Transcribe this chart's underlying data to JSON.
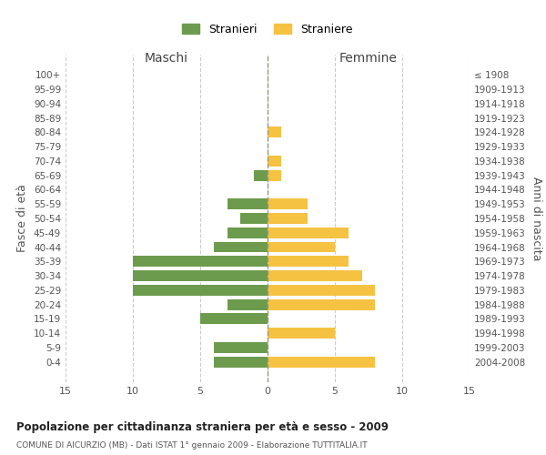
{
  "age_groups": [
    "100+",
    "95-99",
    "90-94",
    "85-89",
    "80-84",
    "75-79",
    "70-74",
    "65-69",
    "60-64",
    "55-59",
    "50-54",
    "45-49",
    "40-44",
    "35-39",
    "30-34",
    "25-29",
    "20-24",
    "15-19",
    "10-14",
    "5-9",
    "0-4"
  ],
  "birth_years": [
    "≤ 1908",
    "1909-1913",
    "1914-1918",
    "1919-1923",
    "1924-1928",
    "1929-1933",
    "1934-1938",
    "1939-1943",
    "1944-1948",
    "1949-1953",
    "1954-1958",
    "1959-1963",
    "1964-1968",
    "1969-1973",
    "1974-1978",
    "1979-1983",
    "1984-1988",
    "1989-1993",
    "1994-1998",
    "1999-2003",
    "2004-2008"
  ],
  "maschi": [
    0,
    0,
    0,
    0,
    0,
    0,
    0,
    1,
    0,
    3,
    2,
    3,
    4,
    10,
    10,
    10,
    3,
    5,
    0,
    4,
    4
  ],
  "femmine": [
    0,
    0,
    0,
    0,
    1,
    0,
    1,
    1,
    0,
    3,
    3,
    6,
    5,
    6,
    7,
    8,
    8,
    0,
    5,
    0,
    8
  ],
  "maschi_color": "#6d9b4e",
  "femmine_color": "#f5c242",
  "background_color": "#ffffff",
  "grid_color": "#cccccc",
  "title": "Popolazione per cittadinanza straniera per età e sesso - 2009",
  "subtitle": "COMUNE DI AICURZIO (MB) - Dati ISTAT 1° gennaio 2009 - Elaborazione TUTTITALIA.IT",
  "ylabel_left": "Fasce di età",
  "ylabel_right": "Anni di nascita",
  "xlabel_left": "Maschi",
  "xlabel_right": "Femmine",
  "legend_maschi": "Stranieri",
  "legend_femmine": "Straniere",
  "xlim": 15,
  "bar_height": 0.75
}
